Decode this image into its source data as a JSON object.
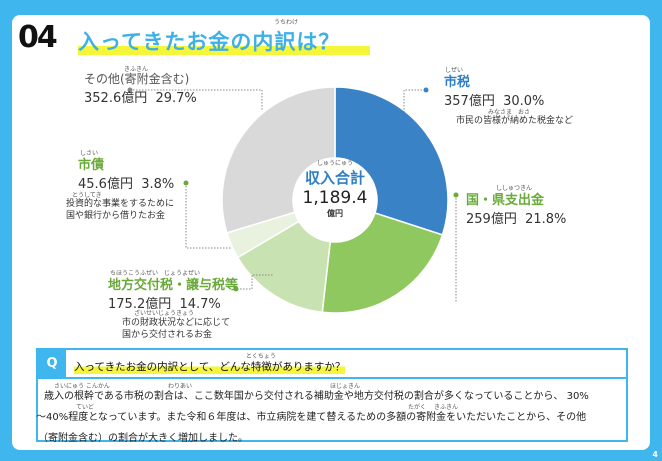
{
  "header": {
    "number": "04",
    "title": "入ってきたお金の内訳は？",
    "title_ruby": "うちわけ"
  },
  "chart_data": {
    "type": "pie",
    "donut": true,
    "title": "",
    "center": {
      "label": "収入合計",
      "label_ruby": "しゅうにゅう",
      "total": "1,189.4",
      "unit": "億円"
    },
    "slices": [
      {
        "name": "市税",
        "ruby": "しぜい",
        "amount": "357億円",
        "percent_text": "30.0%",
        "value": 30.0,
        "color": "#3a82c6",
        "desc": "市民の皆様が納めた税金など",
        "desc_ruby": "みなさま　おさ"
      },
      {
        "name": "国・県支出金",
        "ruby": "ししゅつきん",
        "amount": "259億円",
        "percent_text": "21.8%",
        "value": 21.8,
        "color": "#8ec85e",
        "desc": "",
        "desc_ruby": ""
      },
      {
        "name": "地方交付税・譲与税等",
        "ruby": "ちほうこうふぜい　じょうよぜい",
        "amount": "175.2億円",
        "percent_text": "14.7%",
        "value": 14.7,
        "color": "#c8e2b2",
        "desc": "市の財政状況などに応じて",
        "desc2": "国から交付されるお金",
        "desc_ruby": "ざいせいじょうきょう"
      },
      {
        "name": "市債",
        "ruby": "しさい",
        "amount": "45.6億円",
        "percent_text": "3.8%",
        "value": 3.8,
        "color": "#e8f2df",
        "desc": "投資的な事業をするために",
        "desc2": "国や銀行から借りたお金",
        "desc_ruby": "とうしてき"
      },
      {
        "name": "その他(寄附金含む)",
        "ruby": "きふきん",
        "amount": "352.6億円",
        "percent_text": "29.7%",
        "value": 29.7,
        "color": "#d9d9d9",
        "desc": "",
        "desc_ruby": ""
      }
    ]
  },
  "question": {
    "mark": "Q",
    "text": "入ってきたお金の内訳として、どんな特徴がありますか？",
    "ruby": "とくちょう",
    "answer_lines": [
      "歳入の根幹である市税の割合は、ここ数年国から交付される補助金や地方交付税の割合が多くなっていることから、 30%",
      "～40%程度となっています。また令和６年度は、市立病院を建て替えるための多額の寄附金をいただいたことから、その他",
      "（寄附金含む）の割合が大きく増加しました。"
    ],
    "answer_ruby": [
      "さいにゅう こんかん",
      "わりあい",
      "ほじょきん",
      "ていど",
      "たがく",
      "きふきん"
    ]
  },
  "page_number": "4"
}
